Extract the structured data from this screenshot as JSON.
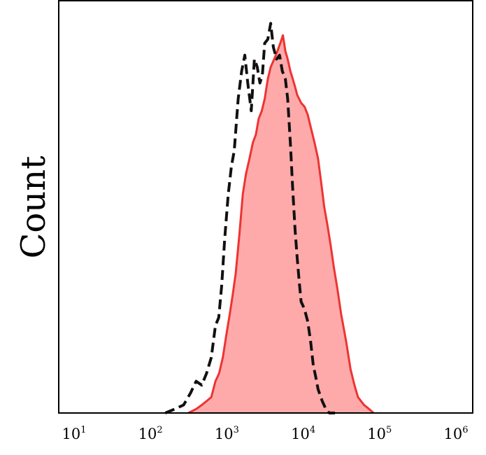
{
  "chart_data": {
    "type": "histogram",
    "xscale": "log",
    "xlim": [
      10,
      1000000
    ],
    "ylabel": "Count",
    "xlabel": "",
    "grid": false,
    "x_ticks": [
      {
        "base": "10",
        "exp": "1",
        "value": 10
      },
      {
        "base": "10",
        "exp": "2",
        "value": 100
      },
      {
        "base": "10",
        "exp": "3",
        "value": 1000
      },
      {
        "base": "10",
        "exp": "4",
        "value": 10000
      },
      {
        "base": "10",
        "exp": "5",
        "value": 100000
      },
      {
        "base": "10",
        "exp": "6",
        "value": 1000000
      }
    ],
    "series": [
      {
        "style": "dashed-black",
        "stroke": "#111111",
        "fill": "none",
        "x": [
          150,
          200,
          260,
          320,
          380,
          450,
          520,
          600,
          680,
          750,
          820,
          900,
          1000,
          1100,
          1200,
          1350,
          1500,
          1650,
          1800,
          2000,
          2200,
          2400,
          2600,
          2800,
          3000,
          3300,
          3600,
          3900,
          4300,
          4700,
          5100,
          5600,
          6000,
          6500,
          7000,
          7500,
          8000,
          8500,
          9000,
          9500,
          10000,
          11000,
          12000,
          13000,
          14000,
          15000,
          17000,
          19000,
          21000,
          25000
        ],
        "y": [
          0,
          1,
          2,
          5,
          8,
          7,
          10,
          14,
          22,
          24,
          32,
          44,
          55,
          62,
          66,
          79,
          86,
          90,
          83,
          76,
          89,
          87,
          83,
          85,
          93,
          94,
          98,
          92,
          89,
          90,
          86,
          84,
          79,
          68,
          56,
          46,
          39,
          33,
          28,
          27,
          26,
          23,
          18,
          12,
          9,
          6,
          3,
          1,
          0,
          0
        ]
      },
      {
        "style": "solid-red-filled",
        "stroke": "#ee3333",
        "fill": "#ffaaaa",
        "x": [
          300,
          380,
          450,
          520,
          600,
          680,
          760,
          850,
          950,
          1050,
          1150,
          1250,
          1400,
          1550,
          1700,
          1900,
          2100,
          2300,
          2500,
          2750,
          3000,
          3300,
          3600,
          4000,
          4400,
          4800,
          5200,
          5600,
          6000,
          6500,
          7000,
          7500,
          8000,
          9000,
          10000,
          11000,
          12000,
          13500,
          15000,
          16500,
          18000,
          20000,
          22000,
          24000,
          27000,
          30000,
          35000,
          40000,
          45000,
          50000,
          60000,
          70000,
          80000
        ],
        "y": [
          0,
          1,
          2,
          3,
          4,
          8,
          10,
          14,
          20,
          25,
          30,
          35,
          45,
          55,
          60,
          64,
          68,
          70,
          74,
          76,
          79,
          84,
          87,
          89,
          91,
          93,
          95,
          91,
          89,
          86,
          84,
          82,
          80,
          78,
          77,
          75,
          72,
          68,
          64,
          58,
          52,
          47,
          42,
          37,
          31,
          25,
          18,
          11,
          7,
          4,
          2,
          1,
          0
        ]
      }
    ]
  }
}
